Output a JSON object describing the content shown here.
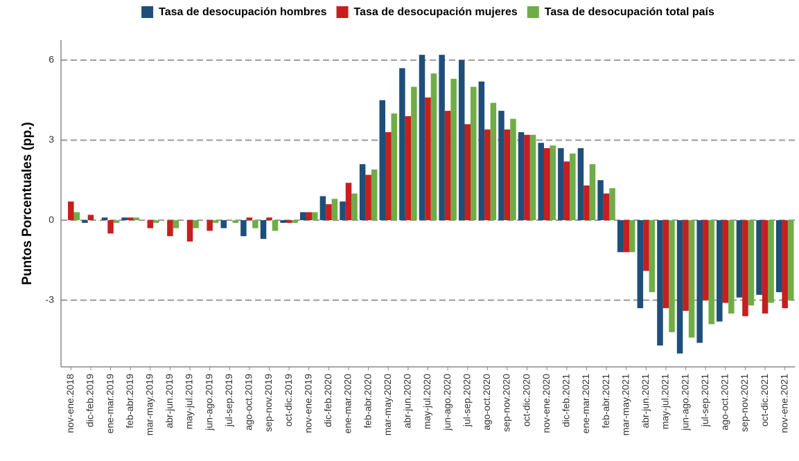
{
  "chart_data": {
    "type": "bar",
    "y_label": "Puntos Porcentuales (pp.)",
    "categories": [
      "nov-ene.2018",
      "dic-feb.2019",
      "ene-mar.2019",
      "feb-abr.2019",
      "mar-may.2019",
      "abr-jun.2019",
      "may-jul.2019",
      "jun-ago.2019",
      "jul-sep.2019",
      "ago-oct.2019",
      "sep-nov.2019",
      "oct-dic.2019",
      "nov-ene.2019",
      "dic-feb.2020",
      "ene-mar.2020",
      "feb-abr.2020",
      "mar-may.2020",
      "abr-jun.2020",
      "may-jul.2020",
      "jun-ago.2020",
      "jul-sep.2020",
      "ago-oct.2020",
      "sep-nov.2020",
      "oct-dic.2020",
      "nov-ene.2020",
      "dic-feb.2021",
      "ene-mar.2021",
      "feb-abr.2021",
      "mar-may.2021",
      "abr-jun.2021",
      "may-jul.2021",
      "jun-ago.2021",
      "jul-sep.2021",
      "ago-oct.2021",
      "sep-nov.2021",
      "oct-dic.2021",
      "nov-ene.2021"
    ],
    "series": [
      {
        "name": "Tasa de desocupación hombres",
        "color": "#1f4e79",
        "values": [
          0.0,
          -0.1,
          0.1,
          0.1,
          0.0,
          0.0,
          0.0,
          0.0,
          -0.3,
          -0.6,
          -0.7,
          -0.1,
          0.3,
          0.9,
          0.7,
          2.1,
          4.5,
          5.7,
          6.2,
          6.2,
          6.0,
          5.2,
          4.1,
          3.3,
          2.9,
          2.7,
          2.7,
          1.5,
          -1.2,
          -3.3,
          -4.7,
          -5.0,
          -4.6,
          -3.8,
          -2.9,
          -2.8,
          -2.7
        ]
      },
      {
        "name": "Tasa de desocupación mujeres",
        "color": "#c81e1e",
        "values": [
          0.7,
          0.2,
          -0.5,
          0.1,
          -0.3,
          -0.6,
          -0.8,
          -0.4,
          0.0,
          0.1,
          0.1,
          -0.1,
          0.3,
          0.6,
          1.4,
          1.7,
          3.3,
          3.9,
          4.6,
          4.1,
          3.6,
          3.4,
          3.4,
          3.2,
          2.7,
          2.2,
          1.3,
          1.0,
          -1.2,
          -1.9,
          -3.3,
          -3.4,
          -3.0,
          -3.1,
          -3.6,
          -3.5,
          -3.3
        ]
      },
      {
        "name": "Tasa de desocupación total país",
        "color": "#70ad47",
        "values": [
          0.3,
          0.0,
          -0.1,
          0.1,
          -0.1,
          -0.3,
          -0.3,
          -0.1,
          -0.1,
          -0.3,
          -0.4,
          -0.1,
          0.3,
          0.8,
          1.0,
          1.9,
          4.0,
          5.0,
          5.5,
          5.3,
          5.0,
          4.4,
          3.8,
          3.2,
          2.8,
          2.5,
          2.1,
          1.2,
          -1.2,
          -2.7,
          -4.2,
          -4.4,
          -3.9,
          -3.5,
          -3.2,
          -3.1,
          -3.0
        ]
      }
    ],
    "ylim": [
      -5.5,
      6.75
    ],
    "yticks": [
      -3,
      0,
      3,
      6
    ],
    "grid": true
  }
}
